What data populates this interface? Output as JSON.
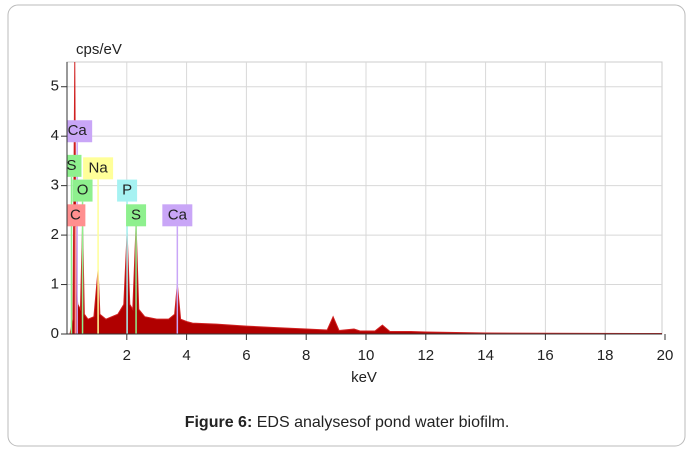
{
  "chart_data": {
    "type": "area",
    "y_label": "cps/eV",
    "x_label": "keV",
    "caption_label": "Figure 6:",
    "caption": "EDS analysesof pond water biofilm.",
    "x": [
      0.1,
      0.2,
      0.26,
      0.3,
      0.36,
      0.45,
      0.52,
      0.58,
      0.7,
      0.9,
      1.04,
      1.1,
      1.3,
      1.5,
      1.7,
      1.9,
      2.01,
      2.1,
      2.2,
      2.31,
      2.4,
      2.6,
      3.0,
      3.4,
      3.6,
      3.69,
      3.8,
      4.01,
      4.2,
      5,
      6,
      7,
      8,
      8.7,
      8.9,
      9.1,
      9.6,
      9.8,
      10.3,
      10.55,
      10.8,
      11.5,
      12,
      13,
      14,
      16,
      19.9
    ],
    "values": [
      0,
      0.3,
      5.5,
      1.0,
      0.6,
      0.5,
      2.2,
      0.4,
      0.3,
      0.35,
      1.3,
      0.4,
      0.3,
      0.35,
      0.4,
      0.6,
      2.05,
      0.6,
      0.5,
      2.2,
      0.5,
      0.35,
      0.3,
      0.3,
      0.4,
      1.0,
      0.3,
      0.25,
      0.22,
      0.2,
      0.16,
      0.13,
      0.1,
      0.08,
      0.35,
      0.07,
      0.1,
      0.06,
      0.06,
      0.18,
      0.05,
      0.05,
      0.04,
      0.03,
      0.02,
      0.015,
      0.01
    ],
    "color": "#b00000",
    "xlim": [
      0,
      19.9
    ],
    "ylim": [
      0,
      5.5
    ],
    "xticks": [
      2,
      4,
      6,
      8,
      10,
      12,
      14,
      16,
      18,
      20
    ],
    "yticks": [
      0,
      1,
      2,
      3,
      4,
      5
    ],
    "grid": true,
    "annotations": [
      {
        "label": "Ca",
        "x": 0.34,
        "color": "#c9a6f7"
      },
      {
        "label": "S",
        "x": 0.15,
        "color": "#8ef08e"
      },
      {
        "label": "Na",
        "x": 1.04,
        "color": "#ffff99"
      },
      {
        "label": "O",
        "x": 0.52,
        "color": "#8ef08e"
      },
      {
        "label": "P",
        "x": 2.01,
        "color": "#a6f2f2"
      },
      {
        "label": "C",
        "x": 0.28,
        "color": "#ff8f8f"
      },
      {
        "label": "S",
        "x": 2.31,
        "color": "#8ef08e"
      },
      {
        "label": "Ca",
        "x": 3.69,
        "color": "#c9a6f7"
      }
    ]
  }
}
